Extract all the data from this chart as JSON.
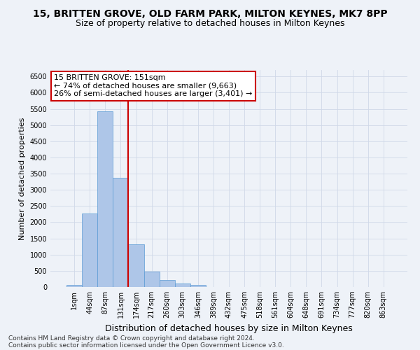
{
  "title1": "15, BRITTEN GROVE, OLD FARM PARK, MILTON KEYNES, MK7 8PP",
  "title2": "Size of property relative to detached houses in Milton Keynes",
  "xlabel": "Distribution of detached houses by size in Milton Keynes",
  "ylabel": "Number of detached properties",
  "bar_values": [
    75,
    2280,
    5420,
    3380,
    1310,
    480,
    220,
    100,
    65,
    0,
    0,
    0,
    0,
    0,
    0,
    0,
    0,
    0,
    0,
    0,
    0
  ],
  "bar_labels": [
    "1sqm",
    "44sqm",
    "87sqm",
    "131sqm",
    "174sqm",
    "217sqm",
    "260sqm",
    "303sqm",
    "346sqm",
    "389sqm",
    "432sqm",
    "475sqm",
    "518sqm",
    "561sqm",
    "604sqm",
    "648sqm",
    "691sqm",
    "734sqm",
    "777sqm",
    "820sqm",
    "863sqm"
  ],
  "bar_color": "#aec6e8",
  "bar_edge_color": "#5b9bd5",
  "grid_color": "#d0d8e8",
  "vline_x": 3.5,
  "property_line_label": "15 BRITTEN GROVE: 151sqm",
  "annotation_line1": "← 74% of detached houses are smaller (9,663)",
  "annotation_line2": "26% of semi-detached houses are larger (3,401) →",
  "annotation_box_color": "#ffffff",
  "annotation_box_edge": "#cc0000",
  "vline_color": "#cc0000",
  "ylim": [
    0,
    6700
  ],
  "yticks": [
    0,
    500,
    1000,
    1500,
    2000,
    2500,
    3000,
    3500,
    4000,
    4500,
    5000,
    5500,
    6000,
    6500
  ],
  "footnote1": "Contains HM Land Registry data © Crown copyright and database right 2024.",
  "footnote2": "Contains public sector information licensed under the Open Government Licence v3.0.",
  "bg_color": "#eef2f8",
  "plot_bg_color": "#eef2f8",
  "title1_fontsize": 10,
  "title2_fontsize": 9,
  "xlabel_fontsize": 9,
  "ylabel_fontsize": 8,
  "tick_fontsize": 7,
  "footnote_fontsize": 6.5,
  "ann_fontsize": 8
}
